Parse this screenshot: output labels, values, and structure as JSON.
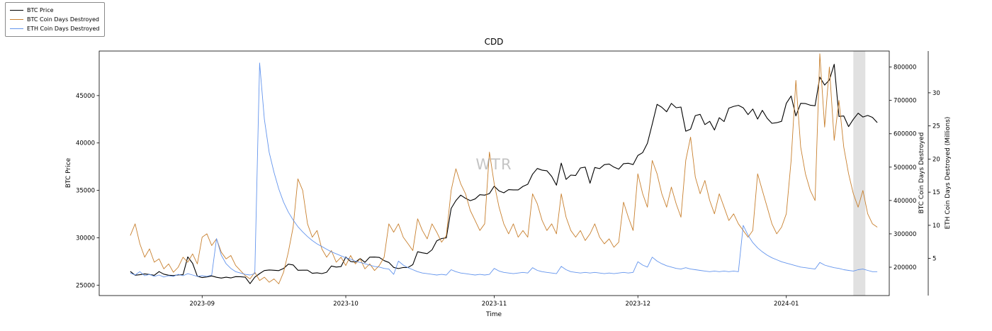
{
  "chart_data": {
    "type": "line",
    "title": "CDD",
    "xlabel": "Time",
    "watermark": "WTR",
    "legend": [
      "BTC Price",
      "BTC Coin Days Destroyed",
      "ETH Coin Days Destroyed"
    ],
    "xlim": [
      -6.5,
      158.5
    ],
    "x_ticks": [
      {
        "value": 15,
        "label": "2023-09"
      },
      {
        "value": 45,
        "label": "2023-10"
      },
      {
        "value": 76,
        "label": "2023-11"
      },
      {
        "value": 106,
        "label": "2023-12"
      },
      {
        "value": 137,
        "label": "2024-01"
      }
    ],
    "x0": 0,
    "dx": 1,
    "grid": false,
    "legend_position": "upper-left-outside",
    "shaded_region": {
      "x0": 151,
      "x1": 153.5,
      "color": "#c8c8c8",
      "opacity": 0.55
    },
    "axes": {
      "btc_price": {
        "label": "BTC Price",
        "side": "left",
        "lim": [
          23900,
          49700
        ],
        "ticks": [
          25000,
          30000,
          35000,
          40000,
          45000
        ]
      },
      "btc_cdd": {
        "label": "BTC Coin Days Destroyed",
        "side": "right",
        "lim": [
          115000,
          848000
        ],
        "ticks": [
          200000,
          300000,
          400000,
          500000,
          600000,
          700000,
          800000
        ]
      },
      "eth_cdd": {
        "label": "ETH Coin Days Destroyed (Millions)",
        "side": "right-offset",
        "lim": [
          -0.6,
          36.3
        ],
        "ticks": [
          5,
          10,
          15,
          20,
          25,
          30
        ]
      }
    },
    "series": [
      {
        "name": "BTC Price",
        "axis": "btc_price",
        "color": "#000000",
        "width": 1.1,
        "values": [
          26450,
          26050,
          26100,
          26190,
          26120,
          26040,
          26430,
          26160,
          26050,
          26010,
          26080,
          26100,
          27980,
          27300,
          25940,
          25800,
          25870,
          25970,
          25830,
          25750,
          25840,
          25760,
          25900,
          25890,
          25840,
          25160,
          25840,
          26220,
          26540,
          26600,
          26570,
          26530,
          26760,
          27210,
          27130,
          26570,
          26580,
          26580,
          26250,
          26300,
          26220,
          26360,
          27020,
          26910,
          26960,
          27970,
          27500,
          27430,
          27800,
          27410,
          27950,
          27960,
          27920,
          27590,
          27390,
          26870,
          26750,
          26860,
          26870,
          27160,
          28520,
          28410,
          28330,
          28720,
          29680,
          29920,
          29990,
          33090,
          33920,
          34500,
          34160,
          33910,
          34090,
          34540,
          34500,
          34660,
          35440,
          34940,
          34740,
          35070,
          35050,
          35050,
          35420,
          35640,
          36700,
          37310,
          37130,
          37070,
          36470,
          35540,
          37880,
          36160,
          36610,
          36570,
          37360,
          37450,
          35750,
          37410,
          37290,
          37710,
          37780,
          37450,
          37240,
          37820,
          37860,
          37720,
          38680,
          38980,
          39970,
          41990,
          44080,
          43760,
          43290,
          44170,
          43720,
          43790,
          41240,
          41460,
          42890,
          43020,
          41940,
          42280,
          41370,
          42660,
          42260,
          43670,
          43860,
          43970,
          43710,
          42990,
          43580,
          42520,
          43440,
          42600,
          42070,
          42140,
          42280,
          44180,
          44960,
          42850,
          44180,
          44160,
          43990,
          43930,
          46950,
          46110,
          46650,
          48300,
          42800,
          42850,
          41730,
          42500,
          43140,
          42740,
          42900,
          42700,
          42150
        ]
      },
      {
        "name": "BTC Coin Days Destroyed",
        "axis": "btc_cdd",
        "color": "#c8802f",
        "width": 0.9,
        "values": [
          295000,
          330000,
          270000,
          230000,
          255000,
          215000,
          225000,
          195000,
          210000,
          185000,
          200000,
          230000,
          215000,
          240000,
          210000,
          290000,
          300000,
          265000,
          285000,
          245000,
          225000,
          235000,
          205000,
          190000,
          175000,
          165000,
          185000,
          160000,
          170000,
          155000,
          165000,
          150000,
          185000,
          245000,
          320000,
          465000,
          430000,
          330000,
          290000,
          310000,
          255000,
          230000,
          250000,
          215000,
          230000,
          205000,
          235000,
          210000,
          225000,
          195000,
          210000,
          190000,
          205000,
          230000,
          330000,
          305000,
          330000,
          290000,
          270000,
          250000,
          345000,
          310000,
          285000,
          330000,
          305000,
          275000,
          295000,
          430000,
          495000,
          450000,
          420000,
          370000,
          340000,
          310000,
          330000,
          545000,
          450000,
          380000,
          330000,
          300000,
          330000,
          290000,
          310000,
          290000,
          420000,
          390000,
          340000,
          310000,
          330000,
          300000,
          420000,
          350000,
          310000,
          290000,
          310000,
          280000,
          300000,
          330000,
          290000,
          270000,
          285000,
          260000,
          275000,
          395000,
          350000,
          310000,
          480000,
          420000,
          380000,
          520000,
          480000,
          420000,
          380000,
          440000,
          390000,
          350000,
          520000,
          590000,
          470000,
          420000,
          460000,
          400000,
          360000,
          420000,
          380000,
          340000,
          360000,
          330000,
          310000,
          290000,
          310000,
          480000,
          430000,
          380000,
          330000,
          300000,
          320000,
          360000,
          520000,
          760000,
          560000,
          480000,
          430000,
          400000,
          840000,
          620000,
          800000,
          580000,
          700000,
          560000,
          480000,
          420000,
          380000,
          430000,
          360000,
          330000,
          320000
        ]
      },
      {
        "name": "ETH Coin Days Destroyed",
        "axis": "eth_cdd",
        "color": "#6495ed",
        "width": 0.9,
        "values": [
          2.8,
          2.5,
          3.0,
          2.4,
          2.6,
          2.3,
          2.5,
          2.2,
          2.4,
          2.3,
          2.6,
          2.4,
          2.7,
          2.5,
          2.3,
          2.4,
          2.3,
          2.5,
          8.0,
          5.5,
          4.2,
          3.5,
          3.0,
          2.8,
          2.6,
          2.5,
          2.7,
          34.5,
          26.0,
          21.0,
          18.0,
          15.5,
          13.5,
          12.0,
          10.8,
          9.8,
          9.0,
          8.3,
          7.7,
          7.2,
          6.8,
          6.4,
          6.0,
          5.7,
          5.4,
          5.1,
          4.9,
          4.6,
          4.4,
          4.2,
          4.0,
          3.8,
          3.7,
          3.5,
          3.4,
          2.6,
          4.6,
          4.0,
          3.6,
          3.3,
          3.0,
          2.8,
          2.7,
          2.6,
          2.5,
          2.6,
          2.5,
          3.3,
          3.0,
          2.8,
          2.7,
          2.6,
          2.5,
          2.6,
          2.5,
          2.6,
          3.5,
          3.1,
          2.9,
          2.8,
          2.7,
          2.8,
          2.9,
          2.8,
          3.6,
          3.2,
          3.0,
          2.9,
          2.8,
          2.7,
          3.8,
          3.3,
          3.0,
          2.9,
          2.8,
          2.9,
          2.8,
          2.9,
          2.8,
          2.7,
          2.8,
          2.7,
          2.8,
          2.9,
          2.8,
          2.9,
          4.5,
          4.0,
          3.7,
          5.2,
          4.6,
          4.2,
          3.9,
          3.7,
          3.5,
          3.4,
          3.6,
          3.4,
          3.3,
          3.2,
          3.1,
          3.0,
          3.1,
          3.0,
          3.1,
          3.0,
          3.1,
          3.0,
          10.0,
          8.5,
          7.4,
          6.6,
          6.0,
          5.5,
          5.1,
          4.8,
          4.5,
          4.3,
          4.1,
          3.9,
          3.7,
          3.6,
          3.5,
          3.4,
          4.4,
          4.0,
          3.8,
          3.6,
          3.5,
          3.3,
          3.2,
          3.1,
          3.3,
          3.4,
          3.2,
          3.0,
          3.0
        ]
      }
    ]
  }
}
